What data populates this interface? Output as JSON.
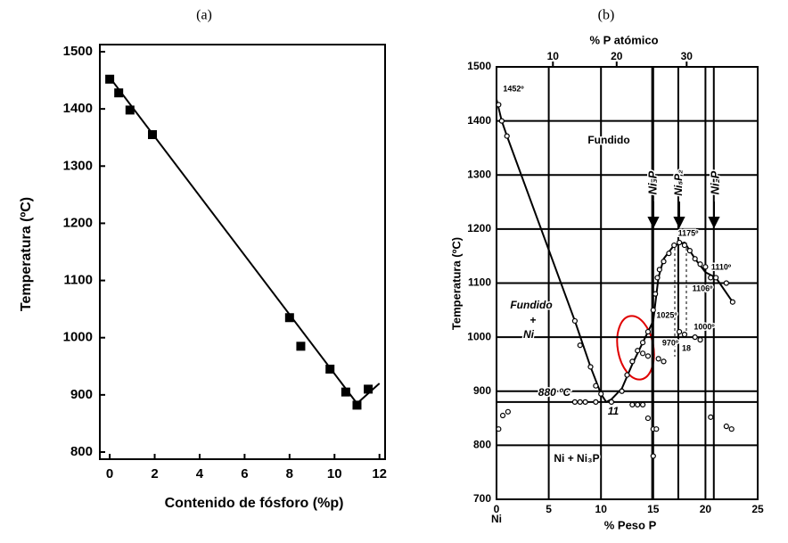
{
  "chart_data": [
    {
      "type": "scatter",
      "title": "(a)",
      "xlabel": "Contenido de fósforo (%p)",
      "ylabel": "Temperatura (ºC)",
      "xlim": [
        -0.44,
        12.25
      ],
      "ylim": [
        800,
        1500
      ],
      "xticks": [
        0,
        2,
        4,
        6,
        8,
        10,
        12
      ],
      "yticks": [
        800,
        900,
        1000,
        1100,
        1200,
        1300,
        1400,
        1500
      ],
      "grid": false,
      "series": [
        {
          "style": "square",
          "color": "#000000",
          "x": [
            0,
            0.4,
            0.9,
            1.9,
            8,
            8.5,
            9.8,
            10.5,
            11,
            11.5
          ],
          "values": [
            1452,
            1428,
            1398,
            1355,
            1035,
            985,
            945,
            905,
            882,
            910
          ]
        },
        {
          "style": "line",
          "color": "#000000",
          "x": [
            0,
            11,
            12
          ],
          "values": [
            1455,
            885,
            920
          ]
        }
      ]
    },
    {
      "type": "scatter",
      "title": "(b)",
      "xlabel": "% Peso P",
      "ylabel": "Temperatura (ºC)",
      "x2label": "% P atómico",
      "xlim": [
        0,
        25
      ],
      "ylim": [
        700,
        1500
      ],
      "xticks": [
        0,
        5,
        10,
        15,
        20,
        25
      ],
      "x2ticks": [
        {
          "value": 5.4,
          "label": "10"
        },
        {
          "value": 11.5,
          "label": "20"
        },
        {
          "value": 18.2,
          "label": "30"
        }
      ],
      "yticks": [
        700,
        800,
        900,
        1000,
        1100,
        1200,
        1300,
        1400,
        1500
      ],
      "grid": true,
      "vlines": [
        14.9,
        17.4,
        20.8
      ],
      "hlines": [
        880
      ],
      "annotations": [
        "1452º",
        "Fundido",
        "Ni₃P",
        "Ni₅P₂",
        "Ni₂P",
        "1175º",
        "1110º",
        "1106º",
        "Fundido",
        "+",
        "Ni",
        "1025º",
        "1000º",
        "970º",
        "18",
        "880 ºC",
        "11",
        "Ni + Ni₃P",
        "Ni"
      ],
      "series": [
        {
          "style": "line",
          "color": "#000000",
          "x": [
            0,
            0.5,
            1,
            7.5,
            9,
            10,
            10.5,
            11,
            12,
            13,
            14,
            15,
            15.5,
            16,
            17,
            18,
            19,
            20,
            21,
            22.6
          ],
          "values": [
            1440,
            1400,
            1372,
            1030,
            945,
            895,
            880,
            885,
            905,
            950,
            990,
            1030,
            1110,
            1145,
            1170,
            1175,
            1145,
            1120,
            1110,
            1065
          ]
        },
        {
          "style": "circle",
          "color": "#000000",
          "x": [
            0.2,
            0.5,
            1,
            7.5,
            8,
            9,
            9.5,
            10,
            7.5,
            8,
            8.5,
            9.5,
            11,
            12,
            12.5,
            13,
            13.5,
            14,
            14.5,
            15,
            15.2,
            15.4,
            15.6,
            16,
            16.5,
            17,
            17.5,
            18,
            18.5,
            19,
            19.5,
            20,
            20.5,
            21,
            22,
            22.6,
            0.2,
            0.6,
            1.1,
            13,
            13.5,
            14,
            14.5,
            15,
            15.3,
            15,
            20.5,
            22,
            22.5,
            14,
            14.5,
            15.5,
            16,
            17.5,
            18,
            19,
            19.5
          ],
          "values": [
            1430,
            1400,
            1372,
            1030,
            985,
            945,
            910,
            895,
            880,
            880,
            880,
            880,
            880,
            900,
            930,
            955,
            975,
            990,
            1010,
            1050,
            1080,
            1110,
            1125,
            1140,
            1155,
            1170,
            1175,
            1170,
            1160,
            1145,
            1135,
            1130,
            1110,
            1110,
            1100,
            1065,
            830,
            855,
            862,
            875,
            875,
            875,
            850,
            830,
            830,
            780,
            852,
            835,
            830,
            970,
            965,
            960,
            955,
            1010,
            1005,
            1000,
            995
          ]
        }
      ]
    }
  ]
}
